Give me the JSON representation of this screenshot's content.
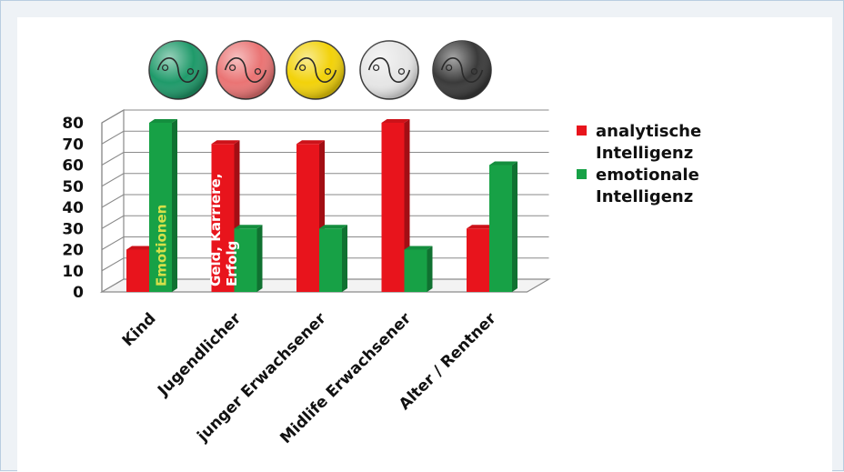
{
  "chart_data": {
    "type": "bar",
    "categories": [
      "Kind",
      "Jugendlicher",
      "junger Erwachsener",
      "Midlife Erwachsener",
      "Alter / Rentner"
    ],
    "series": [
      {
        "name": "analytische Intelligenz",
        "values": [
          20,
          70,
          70,
          80,
          30
        ],
        "color": "#e8141c"
      },
      {
        "name": "emotionale Intelligenz",
        "values": [
          80,
          30,
          30,
          20,
          60
        ],
        "color": "#17a146"
      }
    ],
    "ylim": [
      0,
      80
    ],
    "yticks": [
      0,
      10,
      20,
      30,
      40,
      50,
      60,
      70,
      80
    ],
    "grid": true,
    "legend_position": "right",
    "legend_lines": [
      [
        "analytische",
        "Intelligenz"
      ],
      [
        "emotionale",
        "Intelligenz"
      ]
    ],
    "annotations": [
      {
        "category": 0,
        "series": 1,
        "lines": [
          "Emotionen"
        ],
        "color": "#d4e04a"
      },
      {
        "category": 1,
        "series": 0,
        "lines": [
          "Geld, Karriere,",
          "Erfolg"
        ],
        "color": "#ffffff"
      }
    ],
    "icons": [
      {
        "name": "yin-yang-green-icon",
        "color": "#1f9a6a"
      },
      {
        "name": "yin-yang-pink-icon",
        "color": "#ea7474"
      },
      {
        "name": "yin-yang-yellow-icon",
        "color": "#f2d20a"
      },
      {
        "name": "yin-yang-white-icon",
        "color": "#e6e6e6"
      },
      {
        "name": "yin-yang-black-icon",
        "color": "#3a3a3a"
      }
    ]
  }
}
